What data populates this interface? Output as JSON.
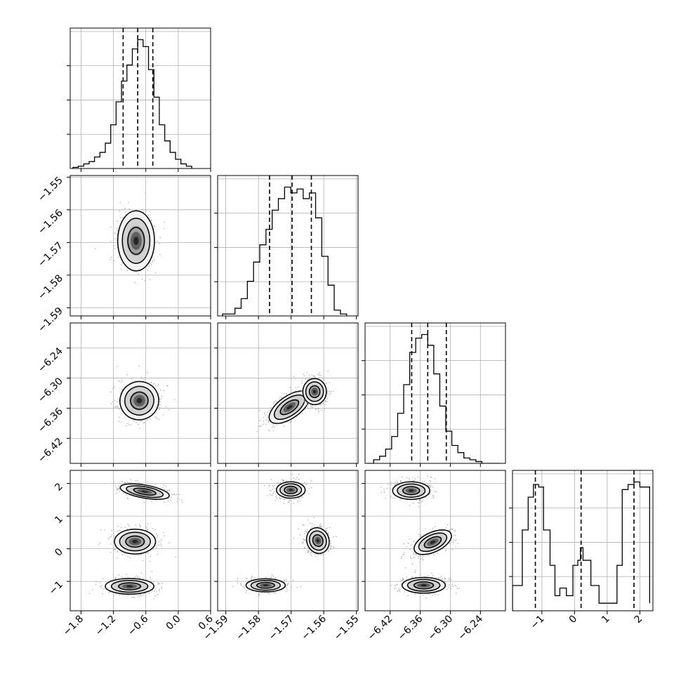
{
  "chart_data": {
    "type": "corner",
    "parameters": [
      {
        "id": "p0",
        "range": [
          -2.0,
          0.6
        ],
        "ticks": [
          -1.8,
          -1.2,
          -0.6,
          0.0,
          0.6
        ],
        "tick_labels": [
          "−1.8",
          "−1.2",
          "−0.6",
          "0.0",
          "0.6"
        ],
        "quantiles": [
          -1.02,
          -0.75,
          -0.47
        ],
        "hist": {
          "bin_edges": [
            -1.95,
            -1.85,
            -1.75,
            -1.65,
            -1.55,
            -1.45,
            -1.35,
            -1.25,
            -1.15,
            -1.05,
            -0.95,
            -0.85,
            -0.75,
            -0.65,
            -0.55,
            -0.45,
            -0.35,
            -0.25,
            -0.15,
            -0.05,
            0.05,
            0.15,
            0.25
          ],
          "counts": [
            1,
            2,
            4,
            6,
            10,
            14,
            22,
            38,
            58,
            76,
            90,
            104,
            112,
            106,
            86,
            62,
            38,
            24,
            14,
            8,
            4,
            2
          ]
        }
      },
      {
        "id": "p1",
        "range": [
          -1.5925,
          -1.5495
        ],
        "ticks": [
          -1.59,
          -1.58,
          -1.57,
          -1.56,
          -1.55
        ],
        "tick_labels": [
          "−1.59",
          "−1.58",
          "−1.57",
          "−1.56",
          "−1.55"
        ],
        "quantiles": [
          -1.5766,
          -1.5697,
          -1.5638
        ],
        "hist": {
          "bin_edges": [
            -1.591,
            -1.5891,
            -1.5872,
            -1.5853,
            -1.5834,
            -1.5815,
            -1.5796,
            -1.5777,
            -1.5758,
            -1.5739,
            -1.572,
            -1.5701,
            -1.5682,
            -1.5663,
            -1.5644,
            -1.5625,
            -1.5606,
            -1.5587,
            -1.5568,
            -1.5549,
            -1.553
          ],
          "counts": [
            1,
            1,
            4,
            9,
            18,
            28,
            37,
            45,
            55,
            61,
            67,
            64,
            66,
            61,
            64,
            51,
            31,
            16,
            3,
            1
          ]
        }
      },
      {
        "id": "p2",
        "range": [
          -6.47,
          -6.19
        ],
        "ticks": [
          -6.42,
          -6.36,
          -6.3,
          -6.24
        ],
        "tick_labels": [
          "−6.42",
          "−6.36",
          "−6.30",
          "−6.24"
        ],
        "quantiles": [
          -6.377,
          -6.345,
          -6.308
        ],
        "hist": {
          "bin_edges": [
            -6.465,
            -6.453,
            -6.441,
            -6.429,
            -6.417,
            -6.405,
            -6.393,
            -6.381,
            -6.369,
            -6.357,
            -6.345,
            -6.333,
            -6.321,
            -6.309,
            -6.297,
            -6.285,
            -6.273,
            -6.261,
            -6.249,
            -6.237,
            -6.225,
            -6.213,
            -6.201
          ],
          "counts": [
            0,
            2,
            4,
            8,
            15,
            28,
            44,
            62,
            70,
            72,
            66,
            50,
            32,
            18,
            10,
            6,
            3,
            2,
            1,
            0,
            0,
            0
          ]
        }
      },
      {
        "id": "p3",
        "range": [
          -1.9,
          2.4
        ],
        "ticks": [
          -1,
          0,
          1,
          2
        ],
        "tick_labels": [
          "−1",
          "0",
          "1",
          "2"
        ],
        "quantiles": [
          -1.2,
          0.2,
          1.82
        ],
        "hist": {
          "bin_edges": [
            -1.9,
            -1.6,
            -1.42,
            -1.26,
            -1.1,
            -0.95,
            -0.75,
            -0.6,
            -0.45,
            -0.25,
            -0.05,
            0.1,
            0.18,
            0.26,
            0.5,
            0.75,
            1.05,
            1.3,
            1.46,
            1.64,
            1.82,
            2.0,
            2.3
          ],
          "counts": [
            1.0,
            3.2,
            4.5,
            5.0,
            4.9,
            3.2,
            1.8,
            0.6,
            0.9,
            0.6,
            1.8,
            2.0,
            2.5,
            2.0,
            1.0,
            0.3,
            0.3,
            1.8,
            4.8,
            5.0,
            5.1,
            4.9,
            0.3
          ]
        }
      }
    ],
    "panels_2d": [
      {
        "x": "p0",
        "y": "p1",
        "modes": [
          {
            "cx": -0.78,
            "cy": -1.5695,
            "rx": 0.34,
            "ry": 0.0092,
            "rot": 0
          }
        ]
      },
      {
        "x": "p0",
        "y": "p2",
        "modes": [
          {
            "cx": -0.72,
            "cy": -6.345,
            "rx": 0.36,
            "ry": 0.038,
            "rot": -25
          }
        ]
      },
      {
        "x": "p1",
        "y": "p2",
        "modes": [
          {
            "cx": -1.5705,
            "cy": -6.358,
            "rx": 0.0072,
            "ry": 0.022,
            "rot": -35
          },
          {
            "cx": -1.5628,
            "cy": -6.327,
            "rx": 0.0036,
            "ry": 0.026,
            "rot": 0
          }
        ]
      },
      {
        "x": "p0",
        "y": "p3",
        "modes": [
          {
            "cx": -0.62,
            "cy": 1.75,
            "rx": 0.46,
            "ry": 0.2,
            "rot": 10
          },
          {
            "cx": -0.8,
            "cy": 0.22,
            "rx": 0.38,
            "ry": 0.38,
            "rot": 0
          },
          {
            "cx": -0.9,
            "cy": -1.15,
            "rx": 0.45,
            "ry": 0.24,
            "rot": 0
          }
        ]
      },
      {
        "x": "p1",
        "y": "p3",
        "modes": [
          {
            "cx": -1.5701,
            "cy": 1.8,
            "rx": 0.0044,
            "ry": 0.25,
            "rot": 0
          },
          {
            "cx": -1.5618,
            "cy": 0.25,
            "rx": 0.0034,
            "ry": 0.4,
            "rot": -20
          },
          {
            "cx": -1.5778,
            "cy": -1.12,
            "rx": 0.006,
            "ry": 0.2,
            "rot": 0
          }
        ]
      },
      {
        "x": "p2",
        "y": "p3",
        "modes": [
          {
            "cx": -6.378,
            "cy": 1.78,
            "rx": 0.037,
            "ry": 0.27,
            "rot": 0
          },
          {
            "cx": -6.335,
            "cy": 0.2,
            "rx": 0.04,
            "ry": 0.3,
            "rot": -25
          },
          {
            "cx": -6.353,
            "cy": -1.12,
            "rx": 0.043,
            "ry": 0.24,
            "rot": 0
          }
        ]
      }
    ],
    "contour_levels": [
      0.39,
      0.86,
      1.0
    ],
    "grid": true,
    "colors": {
      "line": "#000000",
      "grid": "#b0b0b0",
      "points": "#b4b4b4",
      "density": "#000000"
    }
  }
}
